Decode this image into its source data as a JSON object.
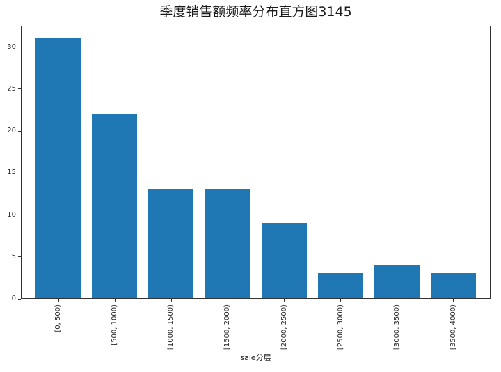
{
  "chart_data": {
    "type": "bar",
    "title": "季度销售额频率分布直方图3145",
    "xlabel": "sale分层",
    "ylabel": "",
    "categories": [
      "[0, 500)",
      "[500, 1000)",
      "[1000, 1500)",
      "[1500, 2000)",
      "[2000, 2500)",
      "[2500, 3000)",
      "[3000, 3500)",
      "[3500, 4000)"
    ],
    "values": [
      31,
      22,
      13,
      13,
      9,
      3,
      4,
      3
    ],
    "yticks": [
      0,
      5,
      10,
      15,
      20,
      25,
      30
    ],
    "ylim": [
      0,
      32.55
    ],
    "xtick_rotation": 90,
    "grid": false,
    "legend": null,
    "bar_color": "#1f77b4",
    "axis_color": "#333333",
    "text_color": "#262626",
    "background_color": "#ffffff"
  }
}
